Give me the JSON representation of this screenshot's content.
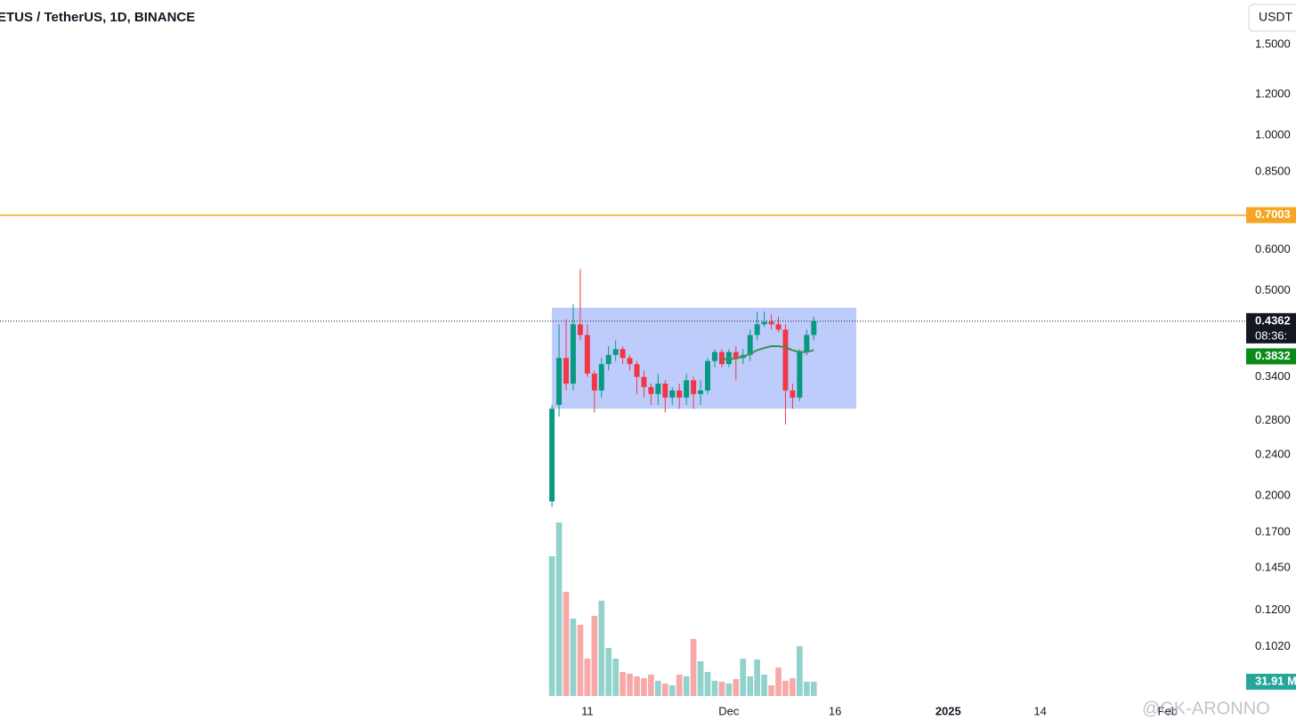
{
  "chart_data": {
    "type": "candlestick",
    "title": "ETUS / TetherUS, 1D, BINANCE",
    "currency": "USDT",
    "log_scale": true,
    "up_color": "#089981",
    "down_color": "#f23645",
    "x": [
      0,
      1,
      2,
      3,
      4,
      5,
      6,
      7,
      8,
      9,
      10,
      11,
      12,
      13,
      14,
      15,
      16,
      17,
      18,
      19,
      20,
      21,
      22,
      23,
      24,
      25,
      26,
      27,
      28,
      29,
      30,
      31,
      32,
      33,
      34,
      35,
      36,
      37
    ],
    "open": [
      0.195,
      0.3,
      0.37,
      0.33,
      0.43,
      0.41,
      0.345,
      0.32,
      0.36,
      0.375,
      0.385,
      0.37,
      0.36,
      0.34,
      0.325,
      0.315,
      0.33,
      0.31,
      0.32,
      0.31,
      0.335,
      0.315,
      0.32,
      0.365,
      0.38,
      0.36,
      0.38,
      0.37,
      0.375,
      0.41,
      0.43,
      0.435,
      0.43,
      0.42,
      0.32,
      0.31,
      0.38,
      0.41
    ],
    "high": [
      0.3,
      0.43,
      0.44,
      0.47,
      0.55,
      0.43,
      0.35,
      0.37,
      0.39,
      0.4,
      0.39,
      0.375,
      0.365,
      0.35,
      0.33,
      0.345,
      0.335,
      0.325,
      0.33,
      0.345,
      0.34,
      0.335,
      0.37,
      0.385,
      0.385,
      0.385,
      0.39,
      0.385,
      0.42,
      0.455,
      0.455,
      0.45,
      0.445,
      0.43,
      0.33,
      0.385,
      0.42,
      0.445
    ],
    "low": [
      0.19,
      0.285,
      0.32,
      0.32,
      0.4,
      0.34,
      0.29,
      0.31,
      0.35,
      0.365,
      0.36,
      0.35,
      0.315,
      0.31,
      0.3,
      0.3,
      0.29,
      0.3,
      0.295,
      0.3,
      0.295,
      0.3,
      0.315,
      0.355,
      0.355,
      0.355,
      0.335,
      0.36,
      0.365,
      0.4,
      0.425,
      0.42,
      0.415,
      0.275,
      0.295,
      0.305,
      0.375,
      0.4
    ],
    "close": [
      0.295,
      0.37,
      0.33,
      0.43,
      0.41,
      0.345,
      0.32,
      0.36,
      0.375,
      0.385,
      0.37,
      0.36,
      0.34,
      0.325,
      0.315,
      0.33,
      0.31,
      0.32,
      0.31,
      0.335,
      0.315,
      0.32,
      0.365,
      0.38,
      0.36,
      0.38,
      0.37,
      0.375,
      0.41,
      0.43,
      0.435,
      0.43,
      0.42,
      0.32,
      0.31,
      0.38,
      0.41,
      0.4362
    ],
    "countdown": "08:36:",
    "ma": {
      "color": "#3d8f52",
      "values": [
        null,
        null,
        null,
        null,
        null,
        null,
        null,
        null,
        null,
        null,
        null,
        null,
        null,
        null,
        null,
        null,
        null,
        null,
        null,
        null,
        null,
        null,
        null,
        null,
        0.368,
        0.368,
        0.369,
        0.372,
        0.377,
        0.383,
        0.387,
        0.39,
        0.39,
        0.388,
        0.383,
        0.38,
        0.38,
        0.3832
      ]
    },
    "volume": {
      "axis": "y2",
      "up_color": "#92d2cc",
      "down_color": "#f7a9a7",
      "values": [
        314,
        390,
        234,
        174,
        160,
        84,
        180,
        214,
        108,
        84,
        54,
        50,
        44,
        40,
        48,
        34,
        28,
        24,
        48,
        44,
        128,
        78,
        54,
        34,
        32,
        28,
        38,
        84,
        44,
        82,
        48,
        24,
        64,
        34,
        40,
        112,
        32,
        31.91
      ],
      "last_label": "31.91 M"
    },
    "hline": {
      "value": 0.7003,
      "color": "#f5a623"
    },
    "box": {
      "x": [
        0,
        43
      ],
      "y": [
        0.295,
        0.463
      ],
      "color": "#b3c3fb"
    },
    "xlim": [
      -78,
      98.1
    ],
    "ylim": [
      0.0818,
      1.83
    ],
    "y2lim": [
      0,
      400
    ],
    "yticks": [
      {
        "value": 1.5,
        "label": "1.5000"
      },
      {
        "value": 1.2,
        "label": "1.2000"
      },
      {
        "value": 1.0,
        "label": "1.0000"
      },
      {
        "value": 0.85,
        "label": "0.8500"
      },
      {
        "value": 0.6,
        "label": "0.6000"
      },
      {
        "value": 0.5,
        "label": "0.5000"
      },
      {
        "value": 0.34,
        "label": "0.3400"
      },
      {
        "value": 0.28,
        "label": "0.2800"
      },
      {
        "value": 0.24,
        "label": "0.2400"
      },
      {
        "value": 0.2,
        "label": "0.2000"
      },
      {
        "value": 0.17,
        "label": "0.1700"
      },
      {
        "value": 0.145,
        "label": "0.1450"
      },
      {
        "value": 0.12,
        "label": "0.1200"
      },
      {
        "value": 0.102,
        "label": "0.1020"
      }
    ],
    "xticks": [
      {
        "value": 5,
        "label": "11"
      },
      {
        "value": 25,
        "label": "Dec"
      },
      {
        "value": 40,
        "label": "16"
      },
      {
        "value": 56,
        "label": "2025"
      },
      {
        "value": 69,
        "label": "14"
      },
      {
        "value": 87,
        "label": "Feb"
      }
    ],
    "watermark": "@GK-ARONNO"
  }
}
